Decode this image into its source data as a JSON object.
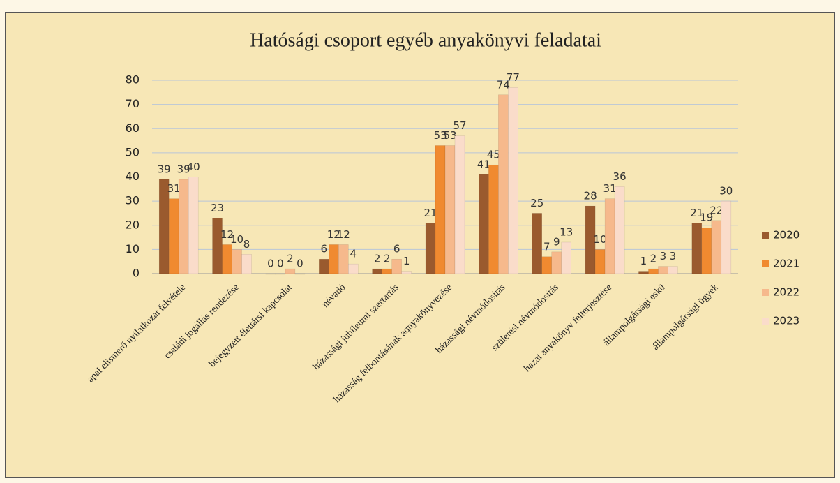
{
  "chart_data": {
    "type": "bar",
    "title": "Hatósági csoport egyéb anyakönyvi feladatai",
    "categories": [
      "apai elismerő nyilatkozat felvétele",
      "családi jogállás rendezése",
      "bejegyzett élettársi kapcsolat",
      "névadó",
      "házassági jubileumi szertartás",
      "házasság felbontásának aqnyakönyvezése",
      "házassági névmódosítás",
      "születési névmódosítás",
      "hazai anyakönyv felterjesztése",
      "állampolgársági eskü",
      "állampolgársági ügyek"
    ],
    "series": [
      {
        "name": "2020",
        "color": "#9a5a2e",
        "values": [
          39,
          23,
          0,
          6,
          2,
          21,
          41,
          25,
          28,
          1,
          21
        ]
      },
      {
        "name": "2021",
        "color": "#f08a30",
        "values": [
          31,
          12,
          0,
          12,
          2,
          53,
          45,
          7,
          10,
          2,
          19
        ]
      },
      {
        "name": "2022",
        "color": "#f6b98c",
        "values": [
          39,
          10,
          2,
          12,
          6,
          53,
          74,
          9,
          31,
          3,
          22
        ]
      },
      {
        "name": "2023",
        "color": "#fadcca",
        "values": [
          40,
          8,
          0,
          4,
          1,
          57,
          77,
          13,
          36,
          3,
          30
        ]
      }
    ],
    "ylim": [
      0,
      80
    ],
    "yticks": [
      0,
      10,
      20,
      30,
      40,
      50,
      60,
      70,
      80
    ],
    "grid": true,
    "legend": "right"
  }
}
